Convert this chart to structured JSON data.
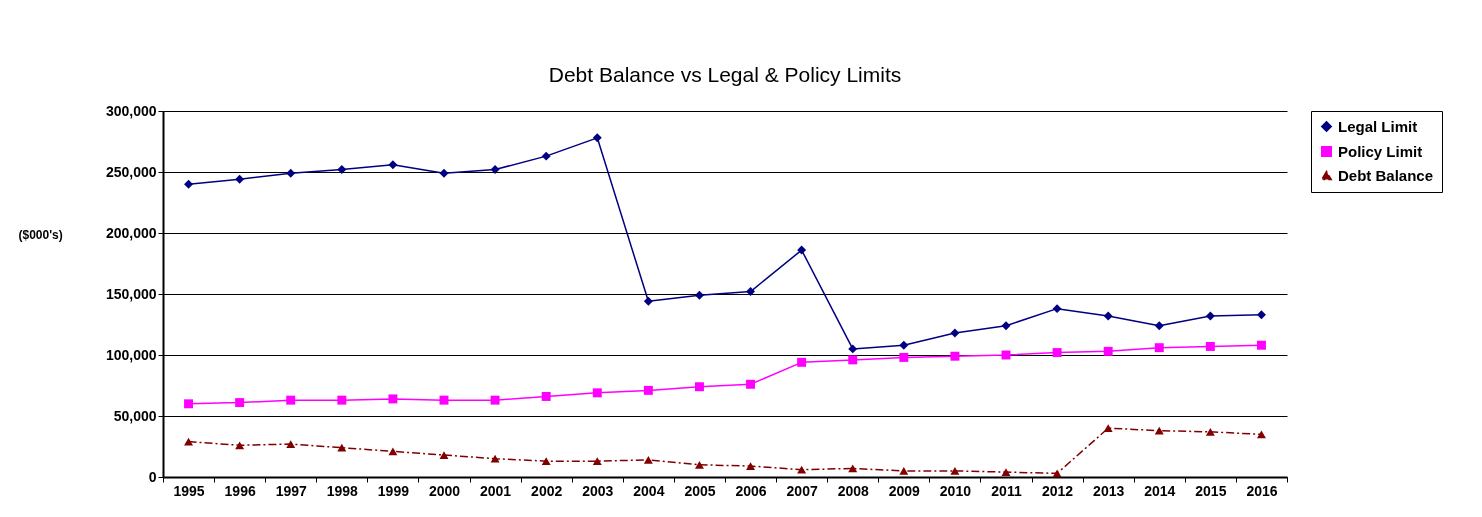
{
  "chart_data": {
    "type": "line",
    "title": "Debt Balance  vs Legal & Policy Limits",
    "ylabel": "($000's)",
    "categories": [
      "1995",
      "1996",
      "1997",
      "1998",
      "1999",
      "2000",
      "2001",
      "2002",
      "2003",
      "2004",
      "2005",
      "2006",
      "2007",
      "2008",
      "2009",
      "2010",
      "2011",
      "2012",
      "2013",
      "2014",
      "2015",
      "2016"
    ],
    "series": [
      {
        "name": "Legal  Limit",
        "color": "#000080",
        "marker": "diamond",
        "line_style": "solid",
        "values": [
          240000,
          244000,
          249000,
          252000,
          256000,
          249000,
          252000,
          263000,
          278000,
          144000,
          149000,
          152000,
          186000,
          105000,
          108000,
          118000,
          124000,
          138000,
          132000,
          124000,
          132000,
          133000
        ]
      },
      {
        "name": "Policy Limit",
        "color": "#ff00ff",
        "marker": "square",
        "line_style": "solid",
        "values": [
          60000,
          61000,
          63000,
          63000,
          64000,
          63000,
          63000,
          66000,
          69000,
          71000,
          74000,
          76000,
          94000,
          96000,
          98000,
          99000,
          100000,
          102000,
          103000,
          106000,
          107000,
          108000
        ]
      },
      {
        "name": "Debt Balance",
        "color": "#800000",
        "marker": "triangle",
        "line_style": "dashdot",
        "values": [
          29000,
          26000,
          27000,
          24000,
          21000,
          18000,
          15000,
          13000,
          13000,
          14000,
          10000,
          9000,
          6000,
          7000,
          5000,
          5000,
          4000,
          3000,
          40000,
          38000,
          37000,
          35000
        ]
      }
    ],
    "ylim": [
      0,
      300000
    ],
    "yticks": [
      {
        "value": 0,
        "label": "0"
      },
      {
        "value": 50000,
        "label": "50,000"
      },
      {
        "value": 100000,
        "label": "100,000"
      },
      {
        "value": 150000,
        "label": "150,000"
      },
      {
        "value": 200000,
        "label": "200,000"
      },
      {
        "value": 250000,
        "label": "250,000"
      },
      {
        "value": 300000,
        "label": "300,000"
      }
    ],
    "grid": "y",
    "legend": "right"
  }
}
